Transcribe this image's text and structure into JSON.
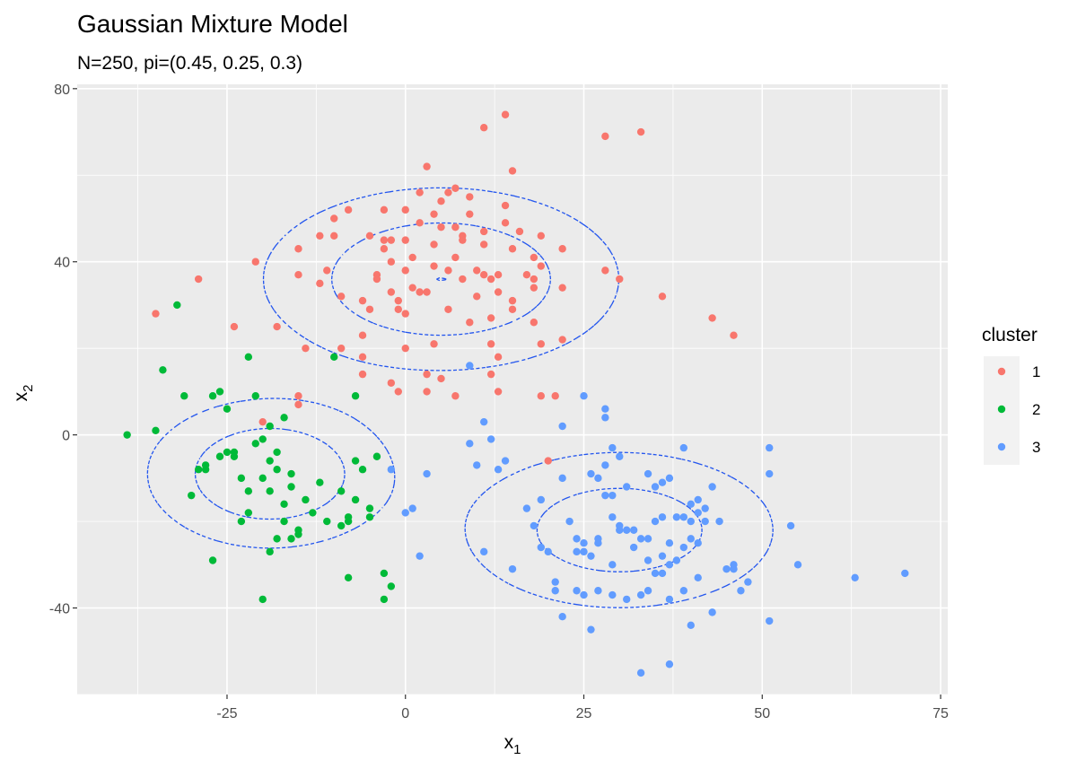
{
  "chart_data": {
    "type": "scatter",
    "title": "Gaussian Mixture Model",
    "subtitle": "N=250, pi=(0.45, 0.25, 0.3)",
    "xlabel": "x",
    "xlabel_sub": "1",
    "ylabel": "x",
    "ylabel_sub": "2",
    "xlim": [
      -46,
      76
    ],
    "ylim": [
      -60,
      81
    ],
    "xticks": [
      -25,
      0,
      25,
      50,
      75
    ],
    "xtick_labels": [
      "-25",
      "0",
      "25",
      "50",
      "75"
    ],
    "yticks": [
      -40,
      0,
      40,
      80
    ],
    "ytick_labels": [
      "-40",
      "0",
      "40",
      "80"
    ],
    "grid": true,
    "panel_background": "#ebebeb",
    "legend": {
      "title": "cluster",
      "position": "right"
    },
    "contour_color": "#2255ee",
    "contour_style": "dashed",
    "components": [
      {
        "mean": [
          5,
          36
        ],
        "sd": [
          13,
          11
        ],
        "weight": 0.45
      },
      {
        "mean": [
          -19,
          -9
        ],
        "sd": [
          9,
          9
        ],
        "weight": 0.25
      },
      {
        "mean": [
          30,
          -22
        ],
        "sd": [
          12,
          10
        ],
        "weight": 0.3
      }
    ],
    "series": [
      {
        "name": "1",
        "color": "#f8766d",
        "points": [
          [
            -35,
            28
          ],
          [
            -29,
            36
          ],
          [
            -24,
            25
          ],
          [
            -21,
            40
          ],
          [
            -20,
            3
          ],
          [
            -18,
            25
          ],
          [
            -15,
            43
          ],
          [
            -15,
            37
          ],
          [
            -14,
            20
          ],
          [
            -15,
            9
          ],
          [
            -15,
            7
          ],
          [
            -12,
            46
          ],
          [
            -10,
            46
          ],
          [
            -11,
            38
          ],
          [
            -10,
            50
          ],
          [
            -12,
            35
          ],
          [
            -9,
            32
          ],
          [
            -9,
            20
          ],
          [
            -8,
            52
          ],
          [
            -6,
            23
          ],
          [
            -6,
            18
          ],
          [
            -6,
            14
          ],
          [
            -6,
            31
          ],
          [
            -5,
            29
          ],
          [
            -5,
            46
          ],
          [
            -4,
            37
          ],
          [
            -4,
            36
          ],
          [
            -3,
            52
          ],
          [
            -3,
            45
          ],
          [
            -3,
            43
          ],
          [
            -2,
            45
          ],
          [
            -2,
            40
          ],
          [
            -2,
            12
          ],
          [
            -1,
            10
          ],
          [
            -2,
            33
          ],
          [
            -1,
            31
          ],
          [
            -1,
            29
          ],
          [
            0,
            52
          ],
          [
            0,
            45
          ],
          [
            0,
            38
          ],
          [
            0,
            28
          ],
          [
            0,
            20
          ],
          [
            1,
            41
          ],
          [
            1,
            34
          ],
          [
            2,
            56
          ],
          [
            2,
            49
          ],
          [
            2,
            33
          ],
          [
            3,
            62
          ],
          [
            3,
            14
          ],
          [
            3,
            33
          ],
          [
            3,
            10
          ],
          [
            4,
            51
          ],
          [
            4,
            44
          ],
          [
            4,
            39
          ],
          [
            4,
            21
          ],
          [
            5,
            54
          ],
          [
            5,
            48
          ],
          [
            5,
            13
          ],
          [
            6,
            56
          ],
          [
            6,
            38
          ],
          [
            6,
            29
          ],
          [
            7,
            57
          ],
          [
            7,
            48
          ],
          [
            7,
            41
          ],
          [
            7,
            9
          ],
          [
            8,
            46
          ],
          [
            8,
            45
          ],
          [
            8,
            36
          ],
          [
            9,
            55
          ],
          [
            9,
            51
          ],
          [
            9,
            26
          ],
          [
            10,
            38
          ],
          [
            10,
            32
          ],
          [
            11,
            71
          ],
          [
            11,
            47
          ],
          [
            11,
            44
          ],
          [
            11,
            37
          ],
          [
            12,
            36
          ],
          [
            12,
            21
          ],
          [
            12,
            27
          ],
          [
            12,
            14
          ],
          [
            13,
            37
          ],
          [
            13,
            33
          ],
          [
            13,
            18
          ],
          [
            13,
            10
          ],
          [
            14,
            74
          ],
          [
            14,
            53
          ],
          [
            14,
            49
          ],
          [
            15,
            61
          ],
          [
            15,
            43
          ],
          [
            15,
            31
          ],
          [
            15,
            29
          ],
          [
            16,
            47
          ],
          [
            17,
            37
          ],
          [
            18,
            41
          ],
          [
            18,
            36
          ],
          [
            18,
            34
          ],
          [
            18,
            26
          ],
          [
            19,
            46
          ],
          [
            19,
            39
          ],
          [
            19,
            21
          ],
          [
            19,
            9
          ],
          [
            20,
            -6
          ],
          [
            21,
            9
          ],
          [
            22,
            43
          ],
          [
            22,
            34
          ],
          [
            22,
            22
          ],
          [
            28,
            69
          ],
          [
            28,
            38
          ],
          [
            30,
            36
          ],
          [
            33,
            70
          ],
          [
            36,
            32
          ],
          [
            43,
            27
          ],
          [
            46,
            23
          ]
        ]
      },
      {
        "name": "2",
        "color": "#00ba38",
        "points": [
          [
            -39,
            0
          ],
          [
            -34,
            15
          ],
          [
            -35,
            1
          ],
          [
            -32,
            30
          ],
          [
            -31,
            9
          ],
          [
            -30,
            -14
          ],
          [
            -29,
            -8
          ],
          [
            -28,
            -8
          ],
          [
            -28,
            -7
          ],
          [
            -27,
            -29
          ],
          [
            -27,
            9
          ],
          [
            -26,
            -5
          ],
          [
            -26,
            10
          ],
          [
            -25,
            6
          ],
          [
            -25,
            -4
          ],
          [
            -24,
            -4
          ],
          [
            -24,
            -5
          ],
          [
            -23,
            -10
          ],
          [
            -23,
            -20
          ],
          [
            -22,
            -13
          ],
          [
            -22,
            -18
          ],
          [
            -22,
            18
          ],
          [
            -21,
            9
          ],
          [
            -21,
            -2
          ],
          [
            -20,
            -38
          ],
          [
            -20,
            -1
          ],
          [
            -20,
            -10
          ],
          [
            -19,
            -27
          ],
          [
            -19,
            -6
          ],
          [
            -19,
            -13
          ],
          [
            -19,
            2
          ],
          [
            -18,
            -24
          ],
          [
            -18,
            -4
          ],
          [
            -18,
            -8
          ],
          [
            -17,
            -16
          ],
          [
            -17,
            -20
          ],
          [
            -17,
            4
          ],
          [
            -16,
            -12
          ],
          [
            -16,
            -9
          ],
          [
            -16,
            -24
          ],
          [
            -15,
            -23
          ],
          [
            -15,
            -22
          ],
          [
            -14,
            -15
          ],
          [
            -13,
            -18
          ],
          [
            -12,
            -11
          ],
          [
            -11,
            -20
          ],
          [
            -10,
            18
          ],
          [
            -9,
            -13
          ],
          [
            -9,
            -21
          ],
          [
            -8,
            -20
          ],
          [
            -8,
            -19
          ],
          [
            -8,
            -33
          ],
          [
            -7,
            -6
          ],
          [
            -7,
            -15
          ],
          [
            -7,
            9
          ],
          [
            -6,
            -8
          ],
          [
            -5,
            -19
          ],
          [
            -5,
            -17
          ],
          [
            -4,
            -5
          ],
          [
            -3,
            -32
          ],
          [
            -3,
            -38
          ],
          [
            -2,
            -35
          ]
        ]
      },
      {
        "name": "3",
        "color": "#619cff",
        "points": [
          [
            -2,
            -8
          ],
          [
            0,
            -18
          ],
          [
            1,
            -17
          ],
          [
            2,
            -28
          ],
          [
            3,
            -9
          ],
          [
            9,
            16
          ],
          [
            9,
            -2
          ],
          [
            10,
            -7
          ],
          [
            11,
            3
          ],
          [
            11,
            -27
          ],
          [
            12,
            -1
          ],
          [
            13,
            -8
          ],
          [
            14,
            -6
          ],
          [
            15,
            -31
          ],
          [
            17,
            -17
          ],
          [
            18,
            -21
          ],
          [
            19,
            -15
          ],
          [
            19,
            -26
          ],
          [
            20,
            -27
          ],
          [
            21,
            -34
          ],
          [
            21,
            -36
          ],
          [
            22,
            -10
          ],
          [
            22,
            -42
          ],
          [
            22,
            2
          ],
          [
            23,
            -20
          ],
          [
            24,
            -24
          ],
          [
            24,
            -27
          ],
          [
            24,
            -36
          ],
          [
            25,
            -25
          ],
          [
            25,
            -27
          ],
          [
            25,
            9
          ],
          [
            25,
            -37
          ],
          [
            26,
            -45
          ],
          [
            26,
            -28
          ],
          [
            26,
            -9
          ],
          [
            27,
            -10
          ],
          [
            27,
            -25
          ],
          [
            27,
            -24
          ],
          [
            27,
            -36
          ],
          [
            28,
            -14
          ],
          [
            28,
            6
          ],
          [
            28,
            4
          ],
          [
            28,
            -7
          ],
          [
            29,
            -3
          ],
          [
            29,
            -14
          ],
          [
            29,
            -19
          ],
          [
            29,
            -30
          ],
          [
            29,
            -37
          ],
          [
            30,
            -5
          ],
          [
            30,
            -21
          ],
          [
            30,
            -22
          ],
          [
            31,
            -12
          ],
          [
            31,
            -22
          ],
          [
            31,
            -38
          ],
          [
            32,
            -22
          ],
          [
            32,
            -26
          ],
          [
            33,
            -24
          ],
          [
            33,
            -37
          ],
          [
            33,
            -55
          ],
          [
            34,
            -29
          ],
          [
            34,
            -9
          ],
          [
            34,
            -24
          ],
          [
            34,
            -36
          ],
          [
            35,
            -12
          ],
          [
            35,
            -20
          ],
          [
            35,
            -32
          ],
          [
            36,
            -11
          ],
          [
            36,
            -19
          ],
          [
            36,
            -28
          ],
          [
            36,
            -32
          ],
          [
            37,
            -25
          ],
          [
            37,
            -30
          ],
          [
            37,
            -10
          ],
          [
            37,
            -38
          ],
          [
            37,
            -53
          ],
          [
            38,
            -29
          ],
          [
            38,
            -19
          ],
          [
            39,
            -3
          ],
          [
            39,
            -26
          ],
          [
            39,
            -19
          ],
          [
            39,
            -36
          ],
          [
            40,
            -24
          ],
          [
            40,
            -20
          ],
          [
            40,
            -16
          ],
          [
            40,
            -44
          ],
          [
            41,
            -18
          ],
          [
            41,
            -15
          ],
          [
            41,
            -25
          ],
          [
            41,
            -33
          ],
          [
            42,
            -20
          ],
          [
            42,
            -17
          ],
          [
            43,
            -41
          ],
          [
            43,
            -12
          ],
          [
            44,
            -20
          ],
          [
            45,
            -31
          ],
          [
            46,
            -31
          ],
          [
            46,
            -30
          ],
          [
            47,
            -36
          ],
          [
            48,
            -34
          ],
          [
            51,
            -3
          ],
          [
            51,
            -43
          ],
          [
            51,
            -9
          ],
          [
            54,
            -21
          ],
          [
            55,
            -30
          ],
          [
            63,
            -33
          ],
          [
            70,
            -32
          ]
        ]
      }
    ]
  }
}
